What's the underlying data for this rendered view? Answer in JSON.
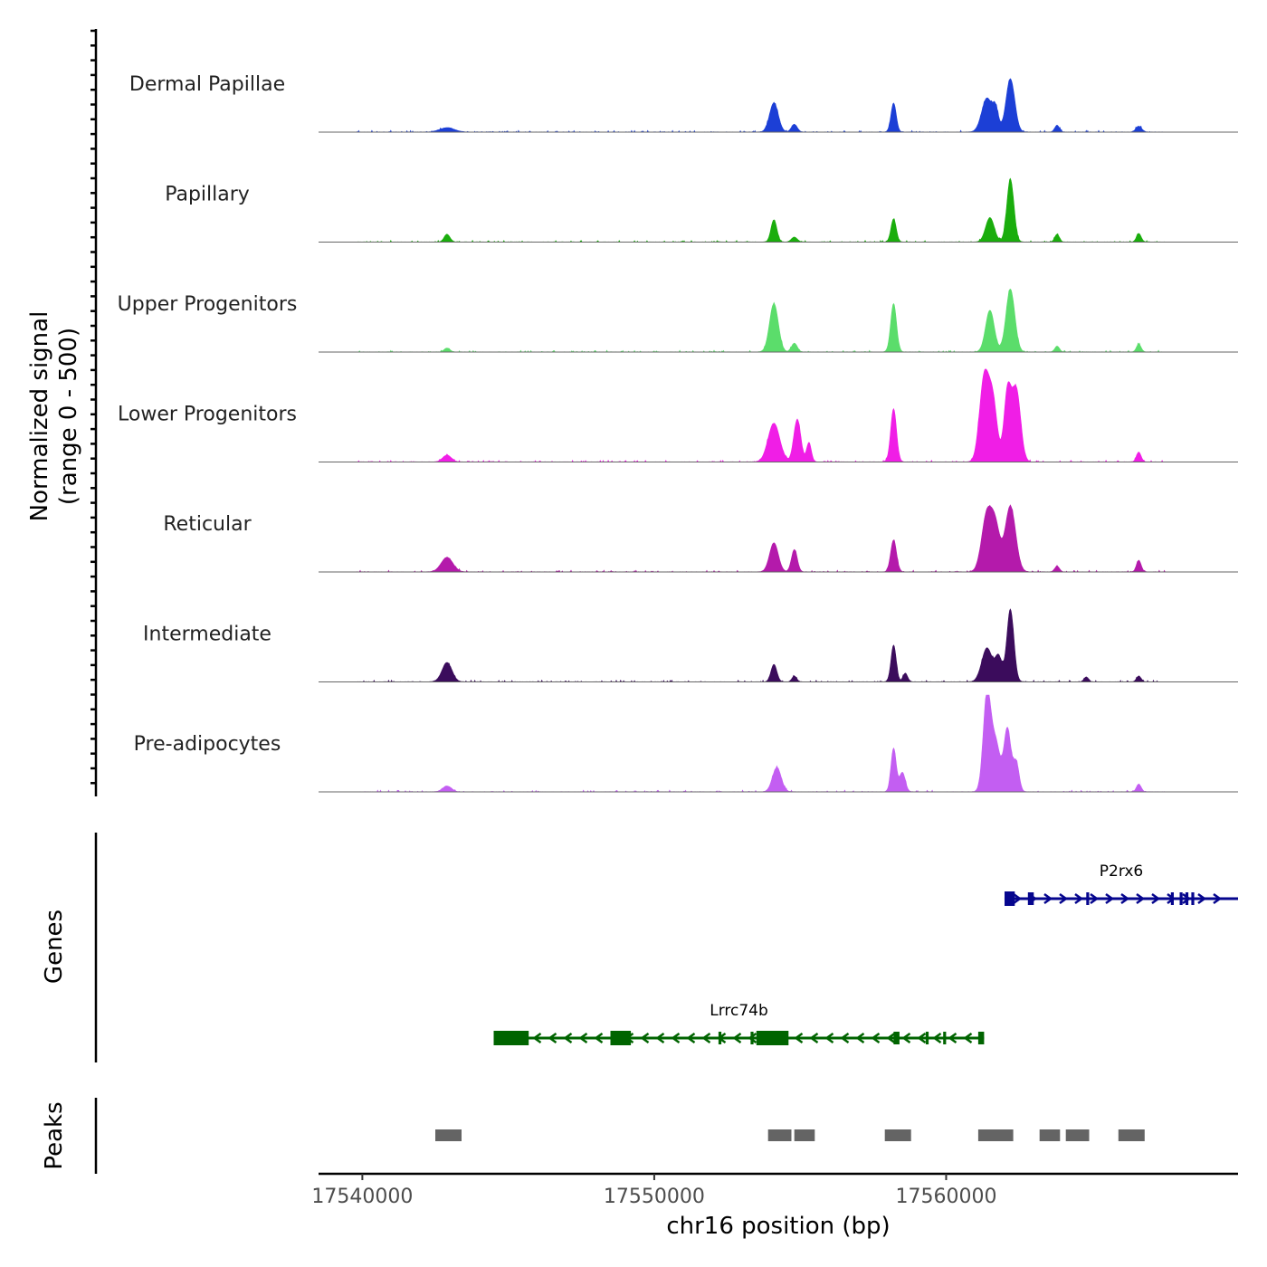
{
  "chart_data": {
    "type": "area",
    "title": "",
    "xlabel": "chr16 position (bp)",
    "ylabel_line1": "Normalized signal",
    "ylabel_line2": "(range 0 - 500)",
    "genes_label": "Genes",
    "peaks_label": "Peaks",
    "xlim": [
      17538500,
      17570000
    ],
    "ylim": [
      0,
      500
    ],
    "x_ticks": [
      17540000,
      17550000,
      17560000
    ],
    "x_tick_labels": [
      "17540000",
      "17550000",
      "17560000"
    ],
    "tracks": [
      {
        "name": "Dermal Papillae",
        "color": "#1c3fd6",
        "peaks": [
          [
            17542900,
            45,
            250
          ],
          [
            17554100,
            300,
            150
          ],
          [
            17554800,
            80,
            100
          ],
          [
            17558200,
            300,
            90
          ],
          [
            17561400,
            350,
            180
          ],
          [
            17561700,
            200,
            100
          ],
          [
            17562200,
            550,
            150
          ],
          [
            17563800,
            70,
            80
          ],
          [
            17566600,
            60,
            100
          ]
        ]
      },
      {
        "name": "Papillary",
        "color": "#1aad0d",
        "peaks": [
          [
            17542900,
            80,
            100
          ],
          [
            17554100,
            230,
            100
          ],
          [
            17554800,
            50,
            100
          ],
          [
            17558200,
            240,
            90
          ],
          [
            17561500,
            250,
            150
          ],
          [
            17562200,
            650,
            120
          ],
          [
            17563800,
            80,
            80
          ],
          [
            17566600,
            90,
            80
          ]
        ]
      },
      {
        "name": "Upper Progenitors",
        "color": "#5bdd6b",
        "peaks": [
          [
            17542900,
            40,
            100
          ],
          [
            17554100,
            500,
            150
          ],
          [
            17554800,
            90,
            100
          ],
          [
            17558200,
            500,
            100
          ],
          [
            17561500,
            430,
            150
          ],
          [
            17562200,
            650,
            150
          ],
          [
            17563800,
            60,
            80
          ],
          [
            17566600,
            80,
            80
          ]
        ]
      },
      {
        "name": "Lower Progenitors",
        "color": "#f01ee6",
        "peaks": [
          [
            17542900,
            70,
            150
          ],
          [
            17554100,
            400,
            200
          ],
          [
            17554900,
            440,
            120
          ],
          [
            17555300,
            200,
            80
          ],
          [
            17558200,
            550,
            100
          ],
          [
            17561300,
            850,
            160
          ],
          [
            17561600,
            600,
            150
          ],
          [
            17562100,
            700,
            120
          ],
          [
            17562400,
            750,
            150
          ],
          [
            17566600,
            100,
            80
          ]
        ]
      },
      {
        "name": "Reticular",
        "color": "#b41aab",
        "peaks": [
          [
            17542900,
            150,
            200
          ],
          [
            17554100,
            300,
            150
          ],
          [
            17554800,
            230,
            100
          ],
          [
            17558200,
            330,
            100
          ],
          [
            17561400,
            600,
            180
          ],
          [
            17561700,
            400,
            150
          ],
          [
            17562200,
            680,
            180
          ],
          [
            17563800,
            60,
            80
          ],
          [
            17566600,
            120,
            80
          ]
        ]
      },
      {
        "name": "Intermediate",
        "color": "#3b0c5c",
        "peaks": [
          [
            17542900,
            200,
            170
          ],
          [
            17554100,
            180,
            100
          ],
          [
            17554800,
            60,
            80
          ],
          [
            17558200,
            380,
            90
          ],
          [
            17558600,
            90,
            80
          ],
          [
            17561400,
            350,
            180
          ],
          [
            17561800,
            250,
            120
          ],
          [
            17562200,
            750,
            120
          ],
          [
            17564800,
            50,
            80
          ],
          [
            17566600,
            60,
            80
          ]
        ]
      },
      {
        "name": "Pre-adipocytes",
        "color": "#c35ef2",
        "peaks": [
          [
            17542900,
            60,
            150
          ],
          [
            17554200,
            250,
            150
          ],
          [
            17558200,
            450,
            90
          ],
          [
            17558500,
            200,
            100
          ],
          [
            17561400,
            1000,
            130
          ],
          [
            17561700,
            500,
            150
          ],
          [
            17562100,
            650,
            120
          ],
          [
            17562400,
            300,
            100
          ],
          [
            17566600,
            80,
            80
          ]
        ]
      }
    ],
    "genes": [
      {
        "name": "P2rx6",
        "strand": "+",
        "color": "#06068e",
        "start": 17562000,
        "end": 17570000,
        "row": 0,
        "exons": [
          [
            17562000,
            17562350
          ],
          [
            17562800,
            17563000
          ],
          [
            17564800,
            17564900
          ],
          [
            17567700,
            17567800
          ],
          [
            17568000,
            17568100
          ],
          [
            17568200,
            17568300
          ],
          [
            17568400,
            17568500
          ]
        ]
      },
      {
        "name": "Lrrc74b",
        "strand": "-",
        "color": "#006400",
        "start": 17544500,
        "end": 17561300,
        "row": 1,
        "exons": [
          [
            17544500,
            17545700
          ],
          [
            17548500,
            17549200
          ],
          [
            17552200,
            17552300
          ],
          [
            17553300,
            17553400
          ],
          [
            17553500,
            17554600
          ],
          [
            17558200,
            17558400
          ],
          [
            17559300,
            17559400
          ],
          [
            17559900,
            17560000
          ],
          [
            17561100,
            17561300
          ]
        ]
      }
    ],
    "peaks": [
      [
        17542500,
        17543400
      ],
      [
        17553900,
        17554700
      ],
      [
        17554800,
        17555500
      ],
      [
        17557900,
        17558800
      ],
      [
        17561100,
        17562300
      ],
      [
        17563200,
        17563900
      ],
      [
        17564100,
        17564900
      ],
      [
        17565900,
        17566800
      ]
    ]
  }
}
